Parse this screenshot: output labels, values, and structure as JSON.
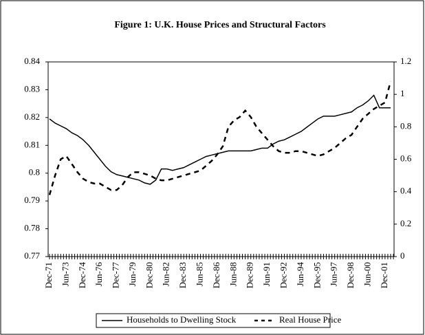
{
  "chart_data": {
    "type": "line",
    "title": "Figure 1: U.K. House Prices and Structural Factors",
    "categories": [
      "Dec-71",
      null,
      null,
      "Jun-73",
      null,
      null,
      "Dec-74",
      null,
      null,
      "Jun-76",
      null,
      null,
      "Dec-77",
      null,
      null,
      "Jun-79",
      null,
      null,
      "Dec-80",
      null,
      null,
      "Jun-82",
      null,
      null,
      "Dec-83",
      null,
      null,
      "Jun-85",
      null,
      null,
      "Dec-86",
      null,
      null,
      "Jun-88",
      null,
      null,
      "Dec-89",
      null,
      null,
      "Jun-91",
      null,
      null,
      "Dec-92",
      null,
      null,
      "Jun-94",
      null,
      null,
      "Dec-95",
      null,
      null,
      "Jun-97",
      null,
      null,
      "Dec-98",
      null,
      null,
      "Jun-00",
      null,
      null,
      "Dec-01",
      null
    ],
    "series": [
      {
        "name": "Households to Dwelling Stock",
        "color": "#000000",
        "dash": false,
        "values": [
          0.8195,
          0.818,
          0.817,
          0.816,
          0.8145,
          0.8135,
          0.812,
          0.81,
          0.8075,
          0.805,
          0.8025,
          0.8005,
          0.7995,
          0.799,
          0.7985,
          0.798,
          0.7975,
          0.7965,
          0.796,
          0.7975,
          0.8015,
          0.8015,
          0.801,
          0.8015,
          0.802,
          0.803,
          0.804,
          0.805,
          0.806,
          0.8065,
          0.807,
          0.8075,
          0.808,
          0.808,
          0.808,
          0.808,
          0.808,
          0.8085,
          0.809,
          0.809,
          0.8105,
          0.8115,
          0.812,
          0.813,
          0.814,
          0.815,
          0.8165,
          0.818,
          0.8195,
          0.8205,
          0.8205,
          0.8205,
          0.821,
          0.8215,
          0.822,
          0.8235,
          0.8245,
          0.826,
          0.828,
          0.8235,
          0.8235,
          0.8235
        ]
      },
      {
        "name": "Real House Price",
        "color": "#000000",
        "dash": true,
        "axis": "y2",
        "values": [
          0.38,
          0.5,
          0.6,
          0.62,
          0.57,
          0.52,
          0.48,
          0.46,
          0.45,
          0.45,
          0.43,
          0.41,
          0.41,
          0.44,
          0.49,
          0.52,
          0.52,
          0.51,
          0.5,
          0.48,
          0.47,
          0.47,
          0.48,
          0.49,
          0.5,
          0.51,
          0.52,
          0.53,
          0.56,
          0.59,
          0.63,
          0.68,
          0.8,
          0.84,
          0.86,
          0.9,
          0.86,
          0.8,
          0.76,
          0.72,
          0.68,
          0.65,
          0.64,
          0.64,
          0.65,
          0.65,
          0.64,
          0.63,
          0.62,
          0.63,
          0.65,
          0.67,
          0.7,
          0.73,
          0.75,
          0.8,
          0.85,
          0.88,
          0.91,
          0.93,
          0.95,
          1.08
        ]
      }
    ],
    "ylim": [
      0.77,
      0.84
    ],
    "yticks": [
      0.77,
      0.78,
      0.79,
      0.8,
      0.81,
      0.82,
      0.83,
      0.84
    ],
    "y2lim": [
      0,
      1.2
    ],
    "y2ticks": [
      0,
      0.2,
      0.4,
      0.6,
      0.8,
      1,
      1.2
    ],
    "grid": false
  }
}
